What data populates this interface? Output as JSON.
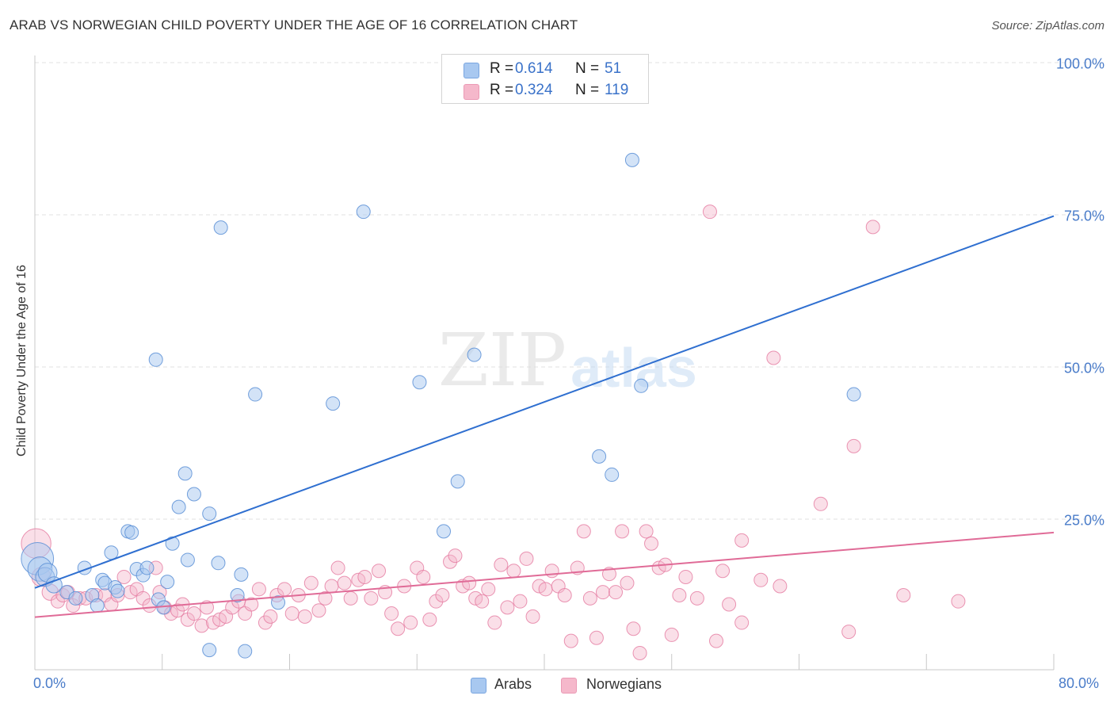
{
  "header": {
    "title": "ARAB VS NORWEGIAN CHILD POVERTY UNDER THE AGE OF 16 CORRELATION CHART",
    "source": "Source: ZipAtlas.com"
  },
  "watermark": {
    "text_zip": "ZIP",
    "text_atlas": "atlas"
  },
  "legend": {
    "rows": [
      {
        "r_label": "R =",
        "r_value": "0.614",
        "n_label": "N =",
        "n_value": "51",
        "color": "#a8c8f0"
      },
      {
        "r_label": "R =",
        "r_value": "0.324",
        "n_label": "N =",
        "n_value": "119",
        "color": "#f5b8cb"
      }
    ]
  },
  "bottom_legend": {
    "items": [
      {
        "label": "Arabs",
        "color": "#a8c8f0"
      },
      {
        "label": "Norwegians",
        "color": "#f5b8cb"
      }
    ]
  },
  "chart_data": {
    "type": "scatter",
    "title": "ARAB VS NORWEGIAN CHILD POVERTY UNDER THE AGE OF 16 CORRELATION CHART",
    "ylabel": "Child Poverty Under the Age of 16",
    "xlabel": "",
    "xlim": [
      0,
      80
    ],
    "ylim": [
      0,
      100
    ],
    "x_tick_labels": {
      "min": "0.0%",
      "max": "80.0%"
    },
    "y_ticks": [
      {
        "value": 100,
        "label": "100.0%"
      },
      {
        "value": 75,
        "label": "75.0%"
      },
      {
        "value": 50,
        "label": "50.0%"
      },
      {
        "value": 25,
        "label": "25.0%"
      }
    ],
    "grid": true,
    "legend_position": "top-center",
    "colors": {
      "arabs_fill": "#a8c8f0",
      "arabs_stroke": "#5b8fd6",
      "arabs_line": "#2f6fd0",
      "norw_fill": "#f5b8cb",
      "norw_stroke": "#e57aa0",
      "norw_line": "#e06b97"
    },
    "series": [
      {
        "name": "Arabs",
        "trendline": {
          "x": [
            0,
            80
          ],
          "y": [
            13.7,
            74.8
          ]
        },
        "points": [
          [
            0.2,
            18.5,
            24
          ],
          [
            0.4,
            16.8,
            18
          ],
          [
            0.8,
            15.5,
            14
          ],
          [
            1.0,
            16.2,
            14
          ],
          [
            1.5,
            14.2,
            12
          ],
          [
            2.5,
            13.0,
            10
          ],
          [
            3.2,
            12.0,
            10
          ],
          [
            3.9,
            17.0,
            10
          ],
          [
            4.5,
            12.5,
            10
          ],
          [
            4.9,
            10.8,
            10
          ],
          [
            5.3,
            15.0,
            10
          ],
          [
            5.5,
            14.5,
            10
          ],
          [
            6.0,
            19.5,
            10
          ],
          [
            6.3,
            13.8,
            10
          ],
          [
            6.5,
            13.2,
            10
          ],
          [
            7.3,
            23.0,
            10
          ],
          [
            7.6,
            22.8,
            10
          ],
          [
            8.0,
            16.8,
            10
          ],
          [
            8.5,
            15.8,
            10
          ],
          [
            8.8,
            17.0,
            10
          ],
          [
            9.5,
            51.2,
            10
          ],
          [
            9.7,
            11.8,
            10
          ],
          [
            10.1,
            10.5,
            10
          ],
          [
            10.4,
            14.7,
            10
          ],
          [
            10.8,
            21.0,
            10
          ],
          [
            11.3,
            27.0,
            10
          ],
          [
            11.8,
            32.5,
            10
          ],
          [
            12.0,
            18.3,
            10
          ],
          [
            12.5,
            29.1,
            10
          ],
          [
            13.7,
            3.5,
            10
          ],
          [
            13.7,
            25.9,
            10
          ],
          [
            14.4,
            17.8,
            10
          ],
          [
            14.6,
            72.9,
            10
          ],
          [
            15.9,
            12.5,
            10
          ],
          [
            16.2,
            15.9,
            10
          ],
          [
            16.5,
            3.3,
            10
          ],
          [
            17.3,
            45.5,
            10
          ],
          [
            19.1,
            11.3,
            10
          ],
          [
            23.4,
            44.0,
            10
          ],
          [
            25.8,
            75.5,
            10
          ],
          [
            30.2,
            47.5,
            10
          ],
          [
            32.1,
            23.0,
            10
          ],
          [
            33.2,
            31.2,
            10
          ],
          [
            34.5,
            52.0,
            10
          ],
          [
            44.3,
            35.3,
            10
          ],
          [
            45.3,
            32.3,
            10
          ],
          [
            46.9,
            84.0,
            10
          ],
          [
            47.6,
            46.9,
            10
          ],
          [
            64.3,
            45.5,
            10
          ]
        ]
      },
      {
        "name": "Norwegians",
        "trendline": {
          "x": [
            0,
            80
          ],
          "y": [
            8.9,
            22.8
          ]
        },
        "points": [
          [
            0.1,
            21.0,
            22
          ],
          [
            0.5,
            15.5,
            14
          ],
          [
            1.2,
            13.0,
            12
          ],
          [
            1.8,
            11.5,
            10
          ],
          [
            2.2,
            12.5,
            10
          ],
          [
            2.6,
            13.0,
            10
          ],
          [
            3.0,
            10.8,
            10
          ],
          [
            3.5,
            12.0,
            10
          ],
          [
            4.0,
            12.0,
            10
          ],
          [
            4.8,
            12.5,
            10
          ],
          [
            5.5,
            12.5,
            10
          ],
          [
            6.0,
            11.0,
            10
          ],
          [
            6.5,
            12.5,
            10
          ],
          [
            7.0,
            15.5,
            10
          ],
          [
            7.5,
            13.0,
            10
          ],
          [
            8.0,
            13.5,
            10
          ],
          [
            8.5,
            12.0,
            10
          ],
          [
            9.0,
            10.8,
            10
          ],
          [
            9.5,
            17.0,
            10
          ],
          [
            9.8,
            13.0,
            10
          ],
          [
            10.2,
            10.5,
            10
          ],
          [
            10.7,
            9.5,
            10
          ],
          [
            11.2,
            10.0,
            10
          ],
          [
            11.6,
            11.0,
            10
          ],
          [
            12.0,
            8.5,
            10
          ],
          [
            12.5,
            9.5,
            10
          ],
          [
            13.1,
            7.5,
            10
          ],
          [
            13.5,
            10.5,
            10
          ],
          [
            14.0,
            8.0,
            10
          ],
          [
            14.5,
            8.5,
            10
          ],
          [
            15.0,
            9.0,
            10
          ],
          [
            15.5,
            10.5,
            10
          ],
          [
            16.0,
            11.5,
            10
          ],
          [
            16.5,
            9.5,
            10
          ],
          [
            17.0,
            11.0,
            10
          ],
          [
            17.6,
            13.5,
            10
          ],
          [
            18.1,
            8.0,
            10
          ],
          [
            18.5,
            9.0,
            10
          ],
          [
            19.0,
            12.5,
            10
          ],
          [
            19.6,
            13.5,
            10
          ],
          [
            20.2,
            9.5,
            10
          ],
          [
            20.7,
            12.5,
            10
          ],
          [
            21.2,
            9.0,
            10
          ],
          [
            21.7,
            14.5,
            10
          ],
          [
            22.3,
            10.0,
            10
          ],
          [
            22.8,
            12.0,
            10
          ],
          [
            23.3,
            14.0,
            10
          ],
          [
            23.8,
            17.0,
            10
          ],
          [
            24.3,
            14.5,
            10
          ],
          [
            24.8,
            12.0,
            10
          ],
          [
            25.4,
            15.0,
            10
          ],
          [
            25.9,
            15.5,
            10
          ],
          [
            26.4,
            12.0,
            10
          ],
          [
            27.0,
            16.5,
            10
          ],
          [
            27.5,
            13.0,
            10
          ],
          [
            28.0,
            9.5,
            10
          ],
          [
            28.5,
            7.0,
            10
          ],
          [
            29.0,
            14.0,
            10
          ],
          [
            29.5,
            8.0,
            10
          ],
          [
            30.0,
            17.0,
            10
          ],
          [
            30.5,
            15.5,
            10
          ],
          [
            31.0,
            8.5,
            10
          ],
          [
            31.5,
            11.5,
            10
          ],
          [
            32.0,
            12.5,
            10
          ],
          [
            32.6,
            18.0,
            10
          ],
          [
            33.0,
            19.0,
            10
          ],
          [
            33.6,
            14.0,
            10
          ],
          [
            34.1,
            14.5,
            10
          ],
          [
            34.6,
            12.0,
            10
          ],
          [
            35.1,
            11.5,
            10
          ],
          [
            35.6,
            13.5,
            10
          ],
          [
            36.1,
            8.0,
            10
          ],
          [
            36.6,
            17.5,
            10
          ],
          [
            37.1,
            10.5,
            10
          ],
          [
            37.6,
            16.5,
            10
          ],
          [
            38.1,
            11.5,
            10
          ],
          [
            38.6,
            18.5,
            10
          ],
          [
            39.1,
            9.0,
            10
          ],
          [
            39.6,
            14.0,
            10
          ],
          [
            40.1,
            13.5,
            10
          ],
          [
            40.6,
            16.5,
            10
          ],
          [
            41.1,
            14.0,
            10
          ],
          [
            41.6,
            12.5,
            10
          ],
          [
            42.1,
            5.0,
            10
          ],
          [
            42.6,
            17.0,
            10
          ],
          [
            43.1,
            23.0,
            10
          ],
          [
            43.6,
            12.0,
            10
          ],
          [
            44.1,
            5.5,
            10
          ],
          [
            44.6,
            13.0,
            10
          ],
          [
            45.1,
            16.0,
            10
          ],
          [
            45.6,
            13.0,
            10
          ],
          [
            46.1,
            23.0,
            10
          ],
          [
            46.5,
            14.5,
            10
          ],
          [
            47.0,
            7.0,
            10
          ],
          [
            47.5,
            3.0,
            10
          ],
          [
            48.0,
            23.0,
            10
          ],
          [
            48.4,
            21.0,
            10
          ],
          [
            49.0,
            17.0,
            10
          ],
          [
            49.5,
            17.5,
            10
          ],
          [
            50.0,
            6.0,
            10
          ],
          [
            50.6,
            12.5,
            10
          ],
          [
            51.1,
            15.5,
            10
          ],
          [
            52.0,
            12.0,
            10
          ],
          [
            53.0,
            75.5,
            10
          ],
          [
            53.5,
            5.0,
            10
          ],
          [
            54.0,
            16.5,
            10
          ],
          [
            54.5,
            11.0,
            10
          ],
          [
            55.5,
            21.5,
            10
          ],
          [
            55.5,
            8.0,
            10
          ],
          [
            57.0,
            15.0,
            10
          ],
          [
            58.0,
            51.5,
            10
          ],
          [
            58.5,
            14.0,
            10
          ],
          [
            61.7,
            27.5,
            10
          ],
          [
            63.9,
            6.5,
            10
          ],
          [
            64.3,
            37.0,
            10
          ],
          [
            65.8,
            73.0,
            10
          ],
          [
            68.2,
            12.5,
            10
          ],
          [
            72.5,
            11.5,
            10
          ]
        ]
      }
    ]
  }
}
